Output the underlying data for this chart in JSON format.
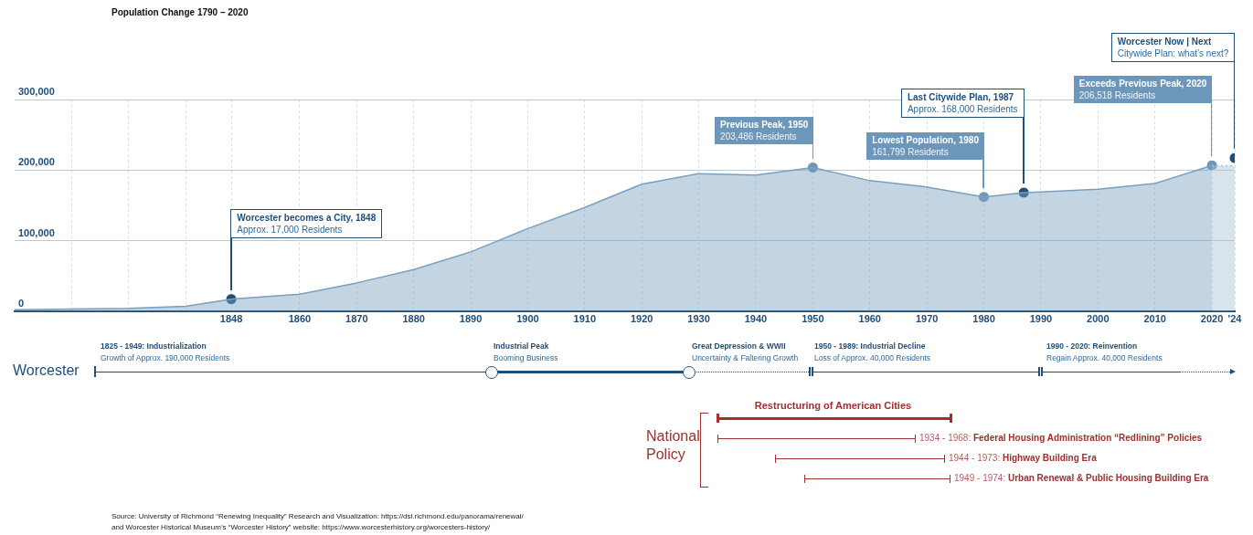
{
  "chart_data": {
    "type": "area",
    "title": "Population Change 1790 – 2020",
    "x": [
      1810,
      1820,
      1830,
      1840,
      1848,
      1860,
      1870,
      1880,
      1890,
      1900,
      1910,
      1920,
      1930,
      1940,
      1950,
      1960,
      1970,
      1980,
      1987,
      1990,
      2000,
      2010,
      2020
    ],
    "series": [
      {
        "color": "#7a9fbe",
        "values": [
          2000,
          3000,
          4000,
          7000,
          17000,
          24000,
          40000,
          59000,
          84000,
          117000,
          147000,
          180000,
          195000,
          193000,
          203486,
          185000,
          176000,
          161799,
          168000,
          169000,
          173000,
          181000,
          206518
        ]
      },
      {
        "type": "area",
        "line_style": "dotted",
        "color": "#aac0d3",
        "x": [
          2020,
          2024
        ],
        "values": [
          206518,
          206000
        ]
      },
      {
        "type": "scatter",
        "marker": "circle",
        "x": [
          1848,
          1950,
          1980,
          1987,
          2020,
          2024
        ],
        "values": [
          17000,
          203486,
          161799,
          168000,
          206518,
          217000
        ],
        "colors": [
          "#1f4e79",
          "#6d97ba",
          "#6d97ba",
          "#1f4e79",
          "#6d97ba",
          "#1f4e79"
        ]
      }
    ],
    "xlim": [
      1810,
      2024
    ],
    "xticks": [
      {
        "value": 1820,
        "label": null
      },
      {
        "value": 1830,
        "label": null
      },
      {
        "value": 1840,
        "label": null
      },
      1848,
      1860,
      1870,
      1880,
      1890,
      1900,
      1910,
      1920,
      1930,
      1940,
      1950,
      1960,
      1970,
      1980,
      1990,
      2000,
      2010,
      2020,
      {
        "value": 2024,
        "label": "'24"
      }
    ],
    "ylim": [
      0,
      300000
    ],
    "yticks": [
      {
        "value": 0,
        "label": "0"
      },
      {
        "value": 100000,
        "label": "100,000"
      },
      {
        "value": 200000,
        "label": "200,000"
      },
      {
        "value": 300000,
        "label": "300,000"
      }
    ],
    "grid": true,
    "legend": false,
    "annotations": [
      "Worcester becomes a City, 1848\nApprox. 17,000 Residents",
      "Previous Peak, 1950\n203,486 Residents",
      "Lowest Population, 1980\n161,799 Residents",
      "Last Citywide Plan, 1987\nApprox. 168,000 Residents",
      "Exceeds Previous Peak, 2020\n206,518 Residents",
      "Worcester Now | Next\nCitywide Plan: what’s next?",
      "Worcester",
      "1825 - 1949: Industrialization\nGrowth of Approx. 190,000 Residents",
      "Industrial Peak\nBooming Business",
      "Great Depression & WWII\nUncertainty & Faltering Growth",
      "1950 - 1989: Industrial Decline\nLoss of Approx. 40,000 Residents",
      "1990 - 2020: Reinvention\nRegain Approx. 40,000 Residents",
      "National\nPolicy",
      "Restructuring of American Cities",
      "1934 - 1968: Federal Housing Administration “Redlining” Policies",
      "1944 - 1973: Highway Building Era",
      "1949 - 1974: Urban Renewal & Public Housing Building Era",
      "Source: University of Richmond “Renewing Inequality” Research and Visualization: https://dsl.richmond.edu/panorama/renewal/\nand Worcester Historical Museum’s “Worcester History” website: https://www.worcesterhistory.org/worcesters-history/"
    ]
  }
}
